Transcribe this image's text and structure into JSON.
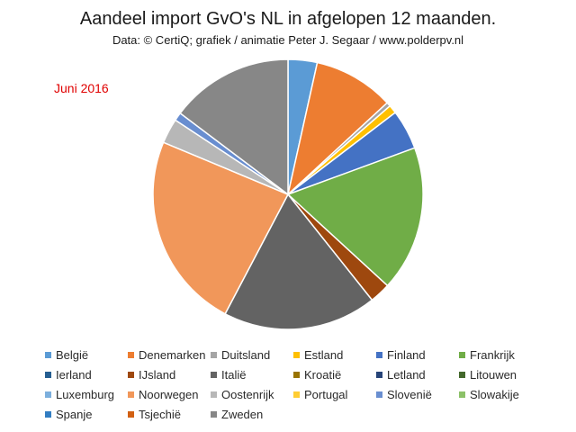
{
  "chart_data": {
    "type": "pie",
    "title": "Aandeel import GvO's NL in afgelopen 12 maanden.",
    "subtitle": "Data: © CertiQ; grafiek / animatie  Peter J. Segaar / www.polderpv.nl",
    "annotation": "Juni 2016",
    "legend_position": "bottom",
    "series": [
      {
        "name": "België",
        "value": 3.5,
        "color": "#5b9bd5"
      },
      {
        "name": "Denemarken",
        "value": 9.7,
        "color": "#ed7d31"
      },
      {
        "name": "Duitsland",
        "value": 0.5,
        "color": "#a5a5a5"
      },
      {
        "name": "Estland",
        "value": 1.0,
        "color": "#ffc000"
      },
      {
        "name": "Finland",
        "value": 4.8,
        "color": "#4472c4"
      },
      {
        "name": "Frankrijk",
        "value": 17.5,
        "color": "#70ad47"
      },
      {
        "name": "Ierland",
        "value": 0.0,
        "color": "#255e91"
      },
      {
        "name": "IJsland",
        "value": 2.5,
        "color": "#9e480e"
      },
      {
        "name": "Italië",
        "value": 18.5,
        "color": "#636363"
      },
      {
        "name": "Kroatië",
        "value": 0.0,
        "color": "#997300"
      },
      {
        "name": "Letland",
        "value": 0.0,
        "color": "#264478"
      },
      {
        "name": "Litouwen",
        "value": 0.0,
        "color": "#43682b"
      },
      {
        "name": "Luxemburg",
        "value": 0.0,
        "color": "#7cafdd"
      },
      {
        "name": "Noorwegen",
        "value": 23.7,
        "color": "#f1975a"
      },
      {
        "name": "Oostenrijk",
        "value": 3.0,
        "color": "#b7b7b7"
      },
      {
        "name": "Portugal",
        "value": 0.0,
        "color": "#ffcd33"
      },
      {
        "name": "Slovenië",
        "value": 1.0,
        "color": "#698ed0"
      },
      {
        "name": "Slowakije",
        "value": 0.0,
        "color": "#8cc168"
      },
      {
        "name": "Spanje",
        "value": 0.0,
        "color": "#327dc2"
      },
      {
        "name": "Tsjechië",
        "value": 0.0,
        "color": "#d26012"
      },
      {
        "name": "Zweden",
        "value": 14.8,
        "color": "#878787"
      }
    ]
  }
}
